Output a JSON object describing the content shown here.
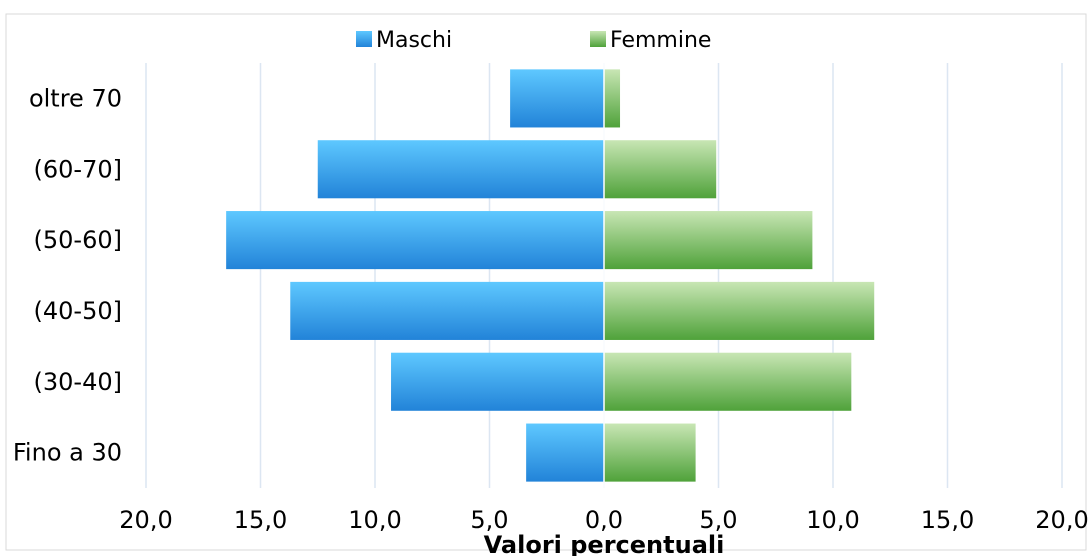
{
  "chart_data": {
    "type": "bar",
    "orientation": "horizontal",
    "layout": "population-pyramid",
    "categories": [
      "oltre 70",
      "(60-70]",
      "(50-60]",
      "(40-50]",
      "(30-40]",
      "Fino a 30"
    ],
    "series": [
      {
        "name": "Maschi",
        "side": "left",
        "values": [
          4.1,
          12.5,
          16.5,
          13.7,
          9.3,
          3.4
        ]
      },
      {
        "name": "Femmine",
        "side": "right",
        "values": [
          0.7,
          4.9,
          9.1,
          11.8,
          10.8,
          4.0
        ]
      }
    ],
    "x_ticks": [
      "20,0",
      "15,0",
      "10,0",
      "5,0",
      "0,0",
      "5,0",
      "10,0",
      "15,0",
      "20,0"
    ],
    "xlim": [
      -20,
      20
    ],
    "xlabel": "Valori percentuali",
    "title": "",
    "grid": "vertical",
    "legend_position": "top-center",
    "colors": {
      "maschi_light": "#5ec8ff",
      "maschi_dark": "#2283d8",
      "femmine_light": "#c8e6b4",
      "femmine_dark": "#4fa23a",
      "grid": "#dce6f2"
    }
  }
}
